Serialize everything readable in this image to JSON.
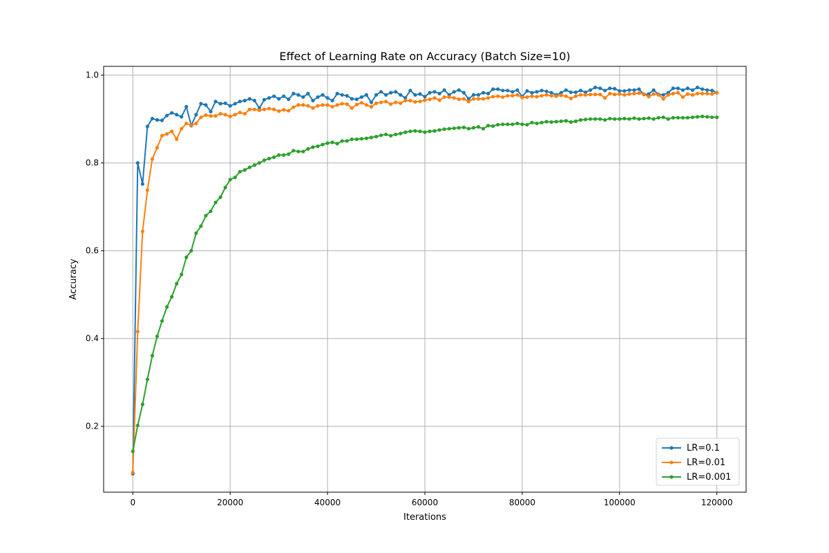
{
  "chart_data": {
    "type": "line",
    "title": "Effect of Learning Rate on Accuracy (Batch Size=10)",
    "xlabel": "Iterations",
    "ylabel": "Accuracy",
    "xlim": [
      -6000,
      126000
    ],
    "ylim": [
      0.05,
      1.02
    ],
    "x_ticks": [
      0,
      20000,
      40000,
      60000,
      80000,
      100000,
      120000
    ],
    "y_ticks": [
      0.2,
      0.4,
      0.6,
      0.8,
      1.0
    ],
    "x_tick_labels": [
      "0",
      "20000",
      "40000",
      "60000",
      "80000",
      "100000",
      "120000"
    ],
    "y_tick_labels": [
      "0.2",
      "0.4",
      "0.6",
      "0.8",
      "1.0"
    ],
    "grid": true,
    "legend_position": "lower-right",
    "x_start": 0,
    "x_step": 1000,
    "series": [
      {
        "name": "LR=0.1",
        "color": "#1f77b4",
        "values": [
          0.092,
          0.8,
          0.752,
          0.883,
          0.901,
          0.898,
          0.897,
          0.908,
          0.914,
          0.91,
          0.905,
          0.928,
          0.885,
          0.91,
          0.935,
          0.932,
          0.917,
          0.94,
          0.935,
          0.936,
          0.93,
          0.935,
          0.94,
          0.942,
          0.946,
          0.942,
          0.925,
          0.944,
          0.948,
          0.952,
          0.946,
          0.952,
          0.945,
          0.958,
          0.955,
          0.95,
          0.958,
          0.942,
          0.95,
          0.955,
          0.948,
          0.942,
          0.958,
          0.955,
          0.953,
          0.946,
          0.945,
          0.95,
          0.955,
          0.938,
          0.955,
          0.962,
          0.955,
          0.96,
          0.962,
          0.955,
          0.948,
          0.965,
          0.955,
          0.957,
          0.951,
          0.96,
          0.962,
          0.958,
          0.966,
          0.955,
          0.962,
          0.966,
          0.96,
          0.946,
          0.955,
          0.955,
          0.96,
          0.958,
          0.968,
          0.968,
          0.965,
          0.965,
          0.962,
          0.966,
          0.951,
          0.964,
          0.96,
          0.962,
          0.965,
          0.963,
          0.96,
          0.955,
          0.96,
          0.966,
          0.961,
          0.961,
          0.965,
          0.961,
          0.966,
          0.972,
          0.97,
          0.965,
          0.97,
          0.969,
          0.964,
          0.964,
          0.966,
          0.966,
          0.968,
          0.956,
          0.957,
          0.966,
          0.956,
          0.955,
          0.96,
          0.97,
          0.97,
          0.966,
          0.97,
          0.966,
          0.972,
          0.968,
          0.966,
          0.965,
          0.96
        ]
      },
      {
        "name": "LR=0.01",
        "color": "#ff7f0e",
        "values": [
          0.095,
          0.416,
          0.644,
          0.738,
          0.809,
          0.835,
          0.862,
          0.866,
          0.872,
          0.854,
          0.878,
          0.89,
          0.886,
          0.89,
          0.904,
          0.909,
          0.907,
          0.907,
          0.912,
          0.91,
          0.906,
          0.91,
          0.915,
          0.912,
          0.922,
          0.922,
          0.92,
          0.922,
          0.924,
          0.922,
          0.918,
          0.921,
          0.919,
          0.927,
          0.932,
          0.932,
          0.93,
          0.925,
          0.93,
          0.932,
          0.932,
          0.928,
          0.932,
          0.935,
          0.934,
          0.925,
          0.933,
          0.937,
          0.932,
          0.928,
          0.936,
          0.938,
          0.94,
          0.934,
          0.938,
          0.936,
          0.942,
          0.942,
          0.939,
          0.94,
          0.943,
          0.945,
          0.948,
          0.943,
          0.95,
          0.95,
          0.948,
          0.945,
          0.946,
          0.94,
          0.946,
          0.946,
          0.946,
          0.948,
          0.951,
          0.952,
          0.95,
          0.953,
          0.953,
          0.955,
          0.949,
          0.95,
          0.952,
          0.951,
          0.953,
          0.955,
          0.953,
          0.952,
          0.954,
          0.952,
          0.947,
          0.952,
          0.955,
          0.955,
          0.956,
          0.956,
          0.956,
          0.948,
          0.958,
          0.956,
          0.957,
          0.955,
          0.957,
          0.958,
          0.959,
          0.957,
          0.951,
          0.957,
          0.955,
          0.946,
          0.955,
          0.958,
          0.96,
          0.95,
          0.957,
          0.955,
          0.958,
          0.958,
          0.958,
          0.957,
          0.96
        ]
      },
      {
        "name": "LR=0.001",
        "color": "#2ca02c",
        "values": [
          0.143,
          0.202,
          0.25,
          0.307,
          0.361,
          0.405,
          0.44,
          0.472,
          0.495,
          0.525,
          0.546,
          0.585,
          0.6,
          0.64,
          0.656,
          0.68,
          0.69,
          0.71,
          0.722,
          0.744,
          0.762,
          0.767,
          0.78,
          0.784,
          0.79,
          0.795,
          0.8,
          0.806,
          0.81,
          0.813,
          0.818,
          0.818,
          0.82,
          0.828,
          0.826,
          0.826,
          0.832,
          0.836,
          0.838,
          0.842,
          0.845,
          0.847,
          0.844,
          0.85,
          0.85,
          0.854,
          0.854,
          0.855,
          0.856,
          0.858,
          0.86,
          0.863,
          0.865,
          0.862,
          0.865,
          0.867,
          0.87,
          0.872,
          0.873,
          0.872,
          0.87,
          0.872,
          0.873,
          0.875,
          0.877,
          0.878,
          0.879,
          0.88,
          0.881,
          0.878,
          0.88,
          0.882,
          0.878,
          0.885,
          0.884,
          0.887,
          0.888,
          0.888,
          0.888,
          0.89,
          0.888,
          0.887,
          0.892,
          0.89,
          0.892,
          0.894,
          0.893,
          0.894,
          0.895,
          0.896,
          0.893,
          0.895,
          0.898,
          0.899,
          0.9,
          0.9,
          0.9,
          0.898,
          0.901,
          0.9,
          0.9,
          0.901,
          0.9,
          0.902,
          0.9,
          0.901,
          0.902,
          0.9,
          0.903,
          0.904,
          0.9,
          0.903,
          0.903,
          0.903,
          0.903,
          0.904,
          0.905,
          0.906,
          0.905,
          0.904,
          0.904
        ]
      }
    ]
  }
}
